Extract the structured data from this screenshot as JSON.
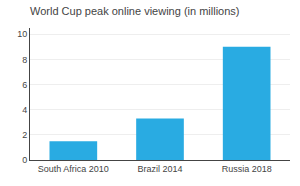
{
  "chart_data": {
    "type": "bar",
    "title": "World Cup peak online viewing (in millions)",
    "categories": [
      "South Africa 2010",
      "Brazil 2014",
      "Russia 2018"
    ],
    "values": [
      1.5,
      3.3,
      9.0
    ],
    "color": "#29abe2",
    "ylim": [
      0,
      10.5
    ],
    "yticks": [
      0,
      2,
      4,
      6,
      8,
      10
    ],
    "grid": true
  }
}
